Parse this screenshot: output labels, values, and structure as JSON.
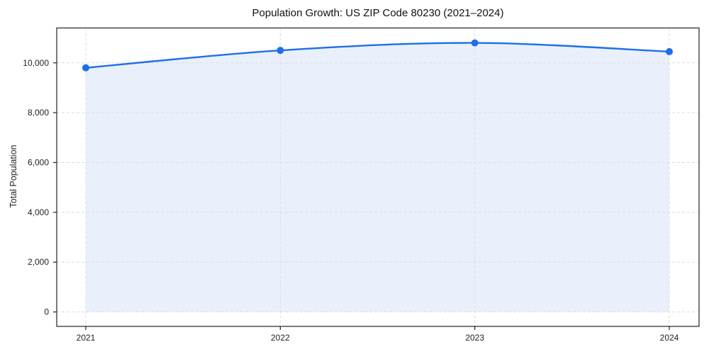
{
  "chart_data": {
    "type": "area",
    "title": "Population Growth: US ZIP Code 80230 (2021–2024)",
    "xlabel": "",
    "ylabel": "Total Population",
    "categories": [
      "2021",
      "2022",
      "2023",
      "2024"
    ],
    "series": [
      {
        "name": "Total Population",
        "values": [
          9800,
          10500,
          10800,
          10450
        ]
      }
    ],
    "ylim": [
      -580,
      11400
    ],
    "yticks": {
      "values": [
        0,
        2000,
        4000,
        6000,
        8000,
        10000
      ],
      "labels": [
        "0",
        "2,000",
        "4,000",
        "6,000",
        "8,000",
        "10,000"
      ]
    },
    "xtick_labels": [
      "2021",
      "2022",
      "2023",
      "2024"
    ],
    "grid": true,
    "grid_style": "dashed",
    "legend": false,
    "marker": "circle",
    "colors": {
      "line": "#1e6fe8",
      "marker": "#1e6fe8",
      "area_fill": "#e9f0fc",
      "grid": "#dcdcdc",
      "axis": "#222222",
      "tick_text": "#222222",
      "title_text": "#111111",
      "background": "#ffffff"
    }
  }
}
